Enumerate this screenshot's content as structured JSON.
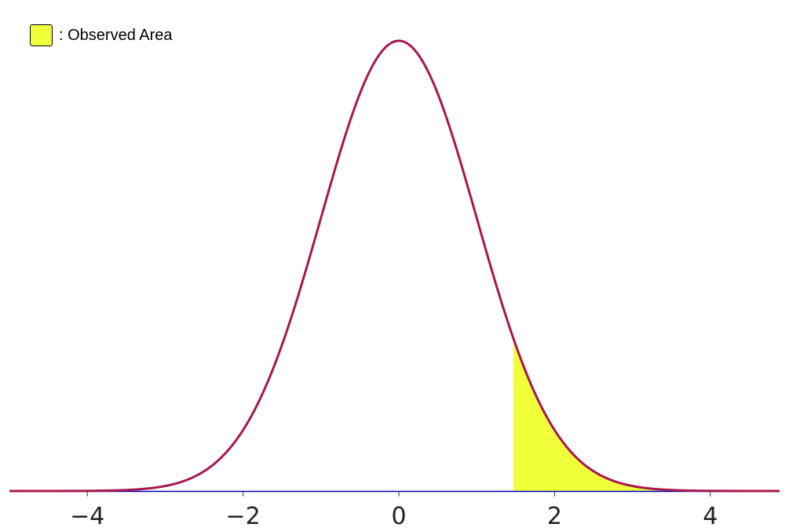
{
  "chart_data": {
    "type": "area",
    "title": "",
    "xlabel": "",
    "ylabel": "",
    "xlim": [
      -5,
      5
    ],
    "ylim": [
      0,
      0.4
    ],
    "grid": false,
    "legend_position": "top-left",
    "x_ticks": [
      -4,
      -2,
      0,
      2,
      4
    ],
    "x_tick_labels": [
      "−4",
      "−2",
      "0",
      "2",
      "4"
    ],
    "curve": {
      "distribution": "standard-normal",
      "mean": 0,
      "sd": 1,
      "color": "#a8174f"
    },
    "shaded_region": {
      "legend_label": ": Observed Area",
      "from": 1.47,
      "to": 5,
      "color": "#f1ff3b"
    },
    "axis_color": "#0000cc"
  }
}
